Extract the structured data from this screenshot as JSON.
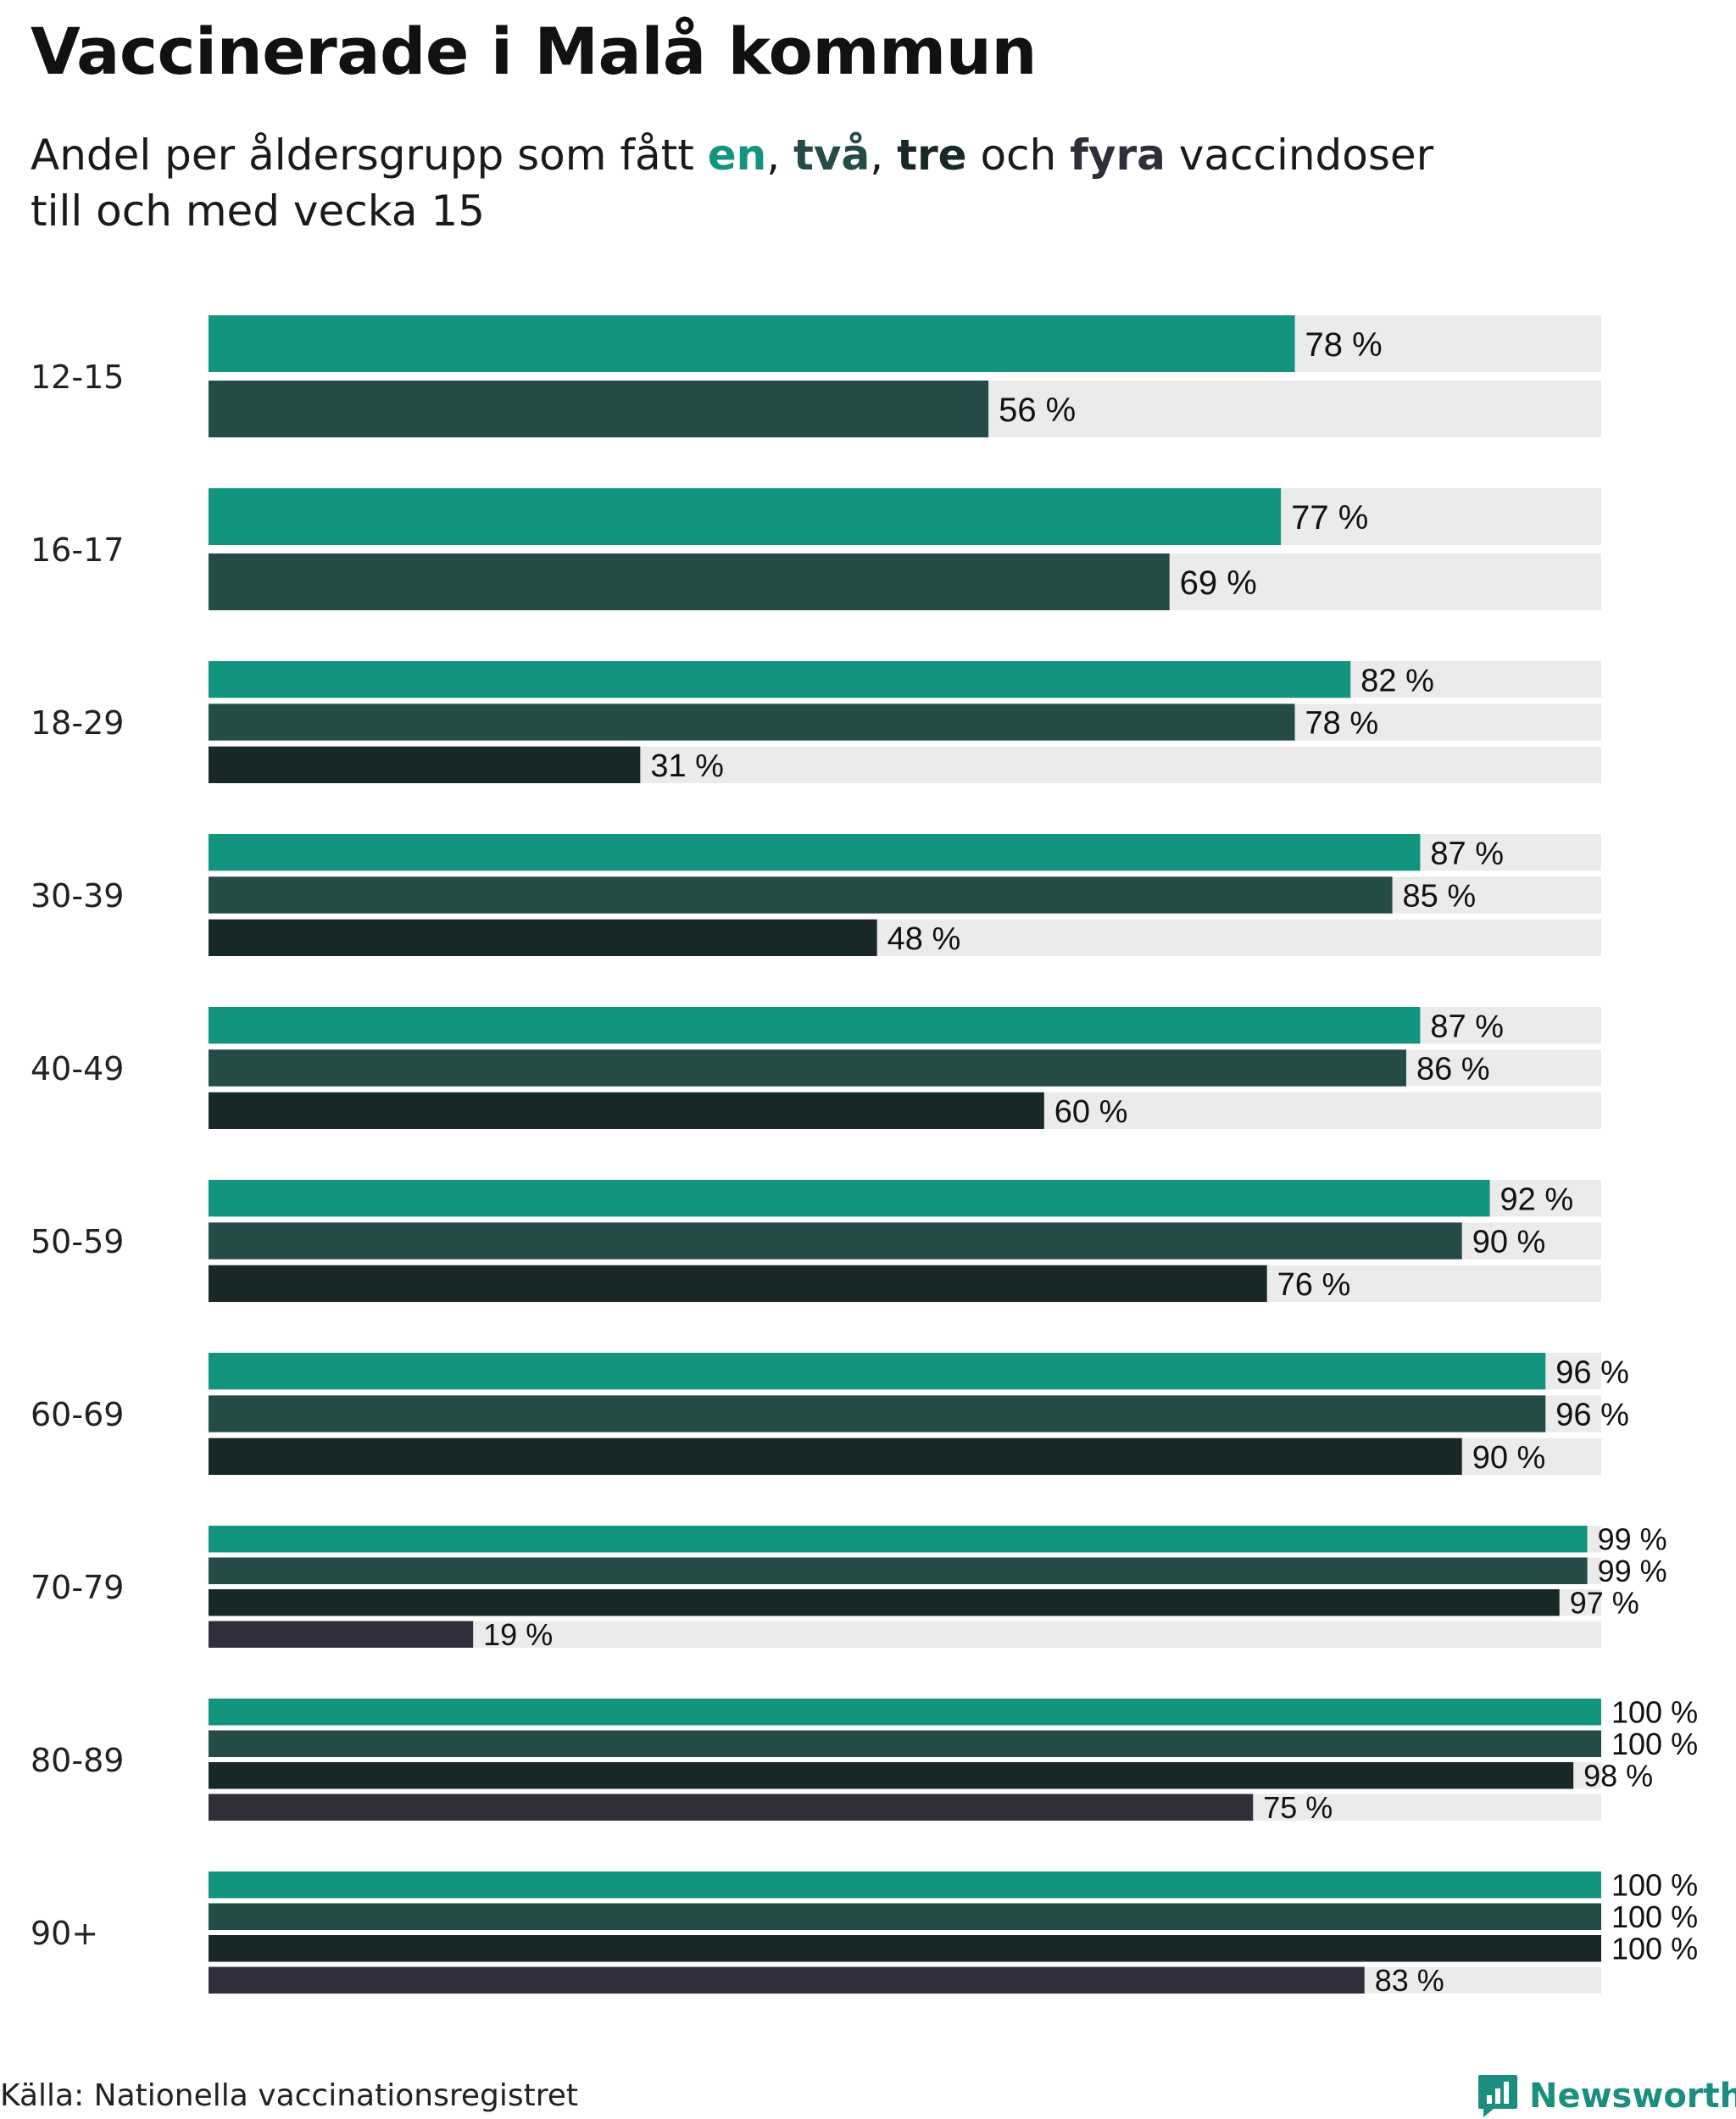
{
  "title": "Vaccinerade i Malå kommun",
  "subtitle": {
    "prefix": "Andel per åldersgrupp som fått ",
    "dose1": "en",
    "sep1": ", ",
    "dose2": "två",
    "sep2": ", ",
    "dose3": "tre",
    "sep3": " och ",
    "dose4": "fyra",
    "suffix1": " vaccindoser",
    "line2": "till och med vecka 15"
  },
  "colors": {
    "dose1": "#13947f",
    "dose2": "#254b48",
    "dose3": "#182826",
    "dose4": "#2f2f3c",
    "track": "#ebebeb"
  },
  "chart_data": {
    "type": "bar",
    "orientation": "horizontal",
    "title": "Vaccinerade i Malå kommun",
    "subtitle": "Andel per åldersgrupp som fått en, två, tre och fyra vaccindoser till och med vecka 15",
    "xlim": [
      0,
      100
    ],
    "unit": " %",
    "categories": [
      "12-15",
      "16-17",
      "18-29",
      "30-39",
      "40-49",
      "50-59",
      "60-69",
      "70-79",
      "80-89",
      "90+"
    ],
    "series": [
      {
        "name": "en",
        "values": [
          78,
          77,
          82,
          87,
          87,
          92,
          96,
          99,
          100,
          100
        ]
      },
      {
        "name": "två",
        "values": [
          56,
          69,
          78,
          85,
          86,
          90,
          96,
          99,
          100,
          100
        ]
      },
      {
        "name": "tre",
        "values": [
          null,
          null,
          31,
          48,
          60,
          76,
          90,
          97,
          98,
          100
        ]
      },
      {
        "name": "fyra",
        "values": [
          null,
          null,
          null,
          null,
          null,
          null,
          null,
          19,
          75,
          83
        ]
      }
    ]
  },
  "footer": {
    "source": "Källa: Nationella vaccinationsregistret",
    "brand": "Newsworthy"
  }
}
